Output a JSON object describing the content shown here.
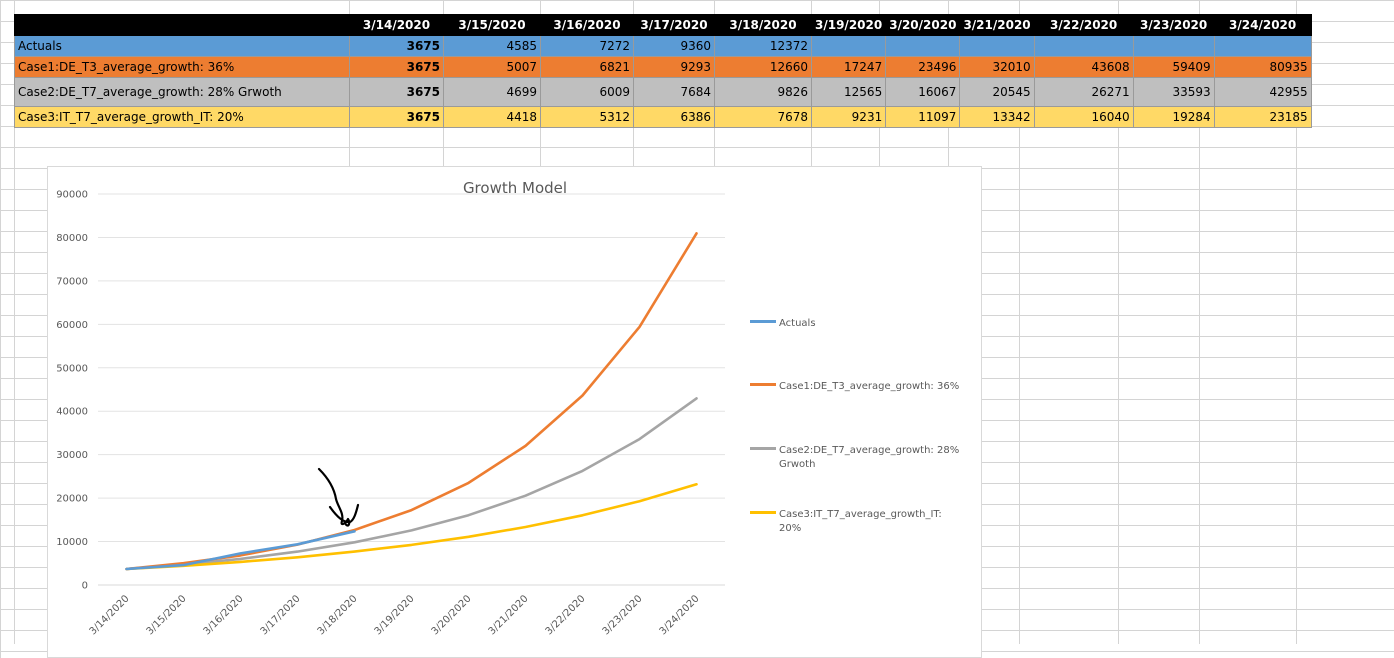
{
  "table": {
    "dates": [
      "3/14/2020",
      "3/15/2020",
      "3/16/2020",
      "3/17/2020",
      "3/18/2020",
      "3/19/2020",
      "3/20/2020",
      "3/21/2020",
      "3/22/2020",
      "3/23/2020",
      "3/24/2020"
    ],
    "rows": [
      {
        "label": "Actuals",
        "values": [
          "3675",
          "4585",
          "7272",
          "9360",
          "12372",
          "",
          "",
          "",
          "",
          "",
          ""
        ]
      },
      {
        "label": "Case1:DE_T3_average_growth: 36%",
        "values": [
          "3675",
          "5007",
          "6821",
          "9293",
          "12660",
          "17247",
          "23496",
          "32010",
          "43608",
          "59409",
          "80935"
        ]
      },
      {
        "label": "Case2:DE_T7_average_growth: 28% Grwoth",
        "values": [
          "3675",
          "4699",
          "6009",
          "7684",
          "9826",
          "12565",
          "16067",
          "20545",
          "26271",
          "33593",
          "42955"
        ]
      },
      {
        "label": "Case3:IT_T7_average_growth_IT: 20%",
        "values": [
          "3675",
          "4418",
          "5312",
          "6386",
          "7678",
          "9231",
          "11097",
          "13342",
          "16040",
          "19284",
          "23185"
        ]
      }
    ]
  },
  "chart_data": {
    "type": "line",
    "title": "Growth Model",
    "categories": [
      "3/14/2020",
      "3/15/2020",
      "3/16/2020",
      "3/17/2020",
      "3/18/2020",
      "3/19/2020",
      "3/20/2020",
      "3/21/2020",
      "3/22/2020",
      "3/23/2020",
      "3/24/2020"
    ],
    "ylim": [
      0,
      90000
    ],
    "yticks": [
      0,
      10000,
      20000,
      30000,
      40000,
      50000,
      60000,
      70000,
      80000,
      90000
    ],
    "grid": true,
    "legend_position": "right",
    "series": [
      {
        "name": "Actuals",
        "color": "#5b9bd5",
        "values": [
          3675,
          4585,
          7272,
          9360,
          12372,
          null,
          null,
          null,
          null,
          null,
          null
        ]
      },
      {
        "name": "Case1:DE_T3_average_growth: 36%",
        "color": "#ed7d31",
        "values": [
          3675,
          5007,
          6821,
          9293,
          12660,
          17247,
          23496,
          32010,
          43608,
          59409,
          80935
        ]
      },
      {
        "name": "Case2:DE_T7_average_growth: 28% Grwoth",
        "color": "#a5a5a5",
        "values": [
          3675,
          4699,
          6009,
          7684,
          9826,
          12565,
          16067,
          20545,
          26271,
          33593,
          42955
        ]
      },
      {
        "name": "Case3:IT_T7_average_growth_IT: 20%",
        "color": "#ffc000",
        "values": [
          3675,
          4418,
          5312,
          6386,
          7678,
          9231,
          11097,
          13342,
          16040,
          19284,
          23185
        ]
      }
    ]
  }
}
